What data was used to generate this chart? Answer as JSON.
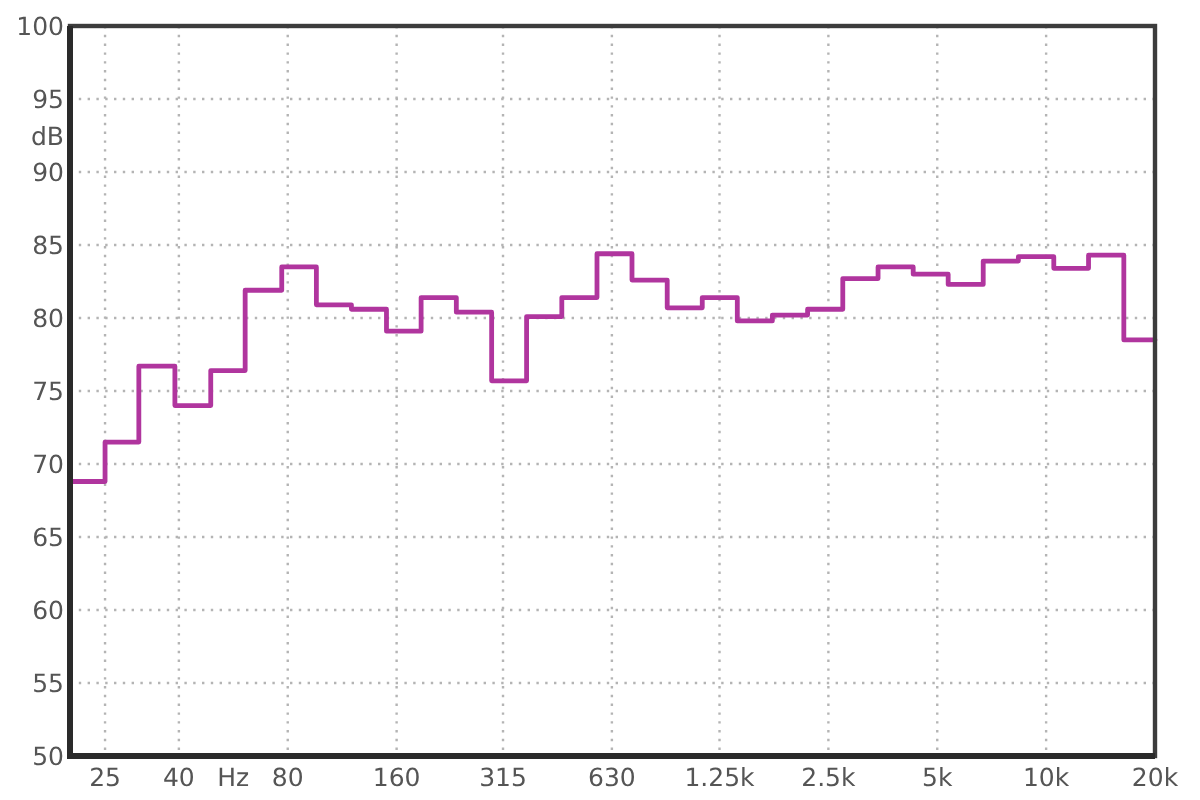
{
  "chart_data": {
    "type": "step",
    "xlabel": "Hz",
    "ylabel": "dB",
    "log": "x",
    "x": [
      20,
      25,
      31,
      39,
      49,
      61,
      77,
      96,
      120,
      150,
      187,
      234,
      293,
      366,
      458,
      573,
      716,
      896,
      1120,
      1400,
      1750,
      2190,
      2740,
      3430,
      4290,
      5360,
      6700,
      8380,
      10500,
      13100,
      16400,
      20000
    ],
    "values": [
      68.8,
      71.5,
      76.7,
      74.0,
      76.4,
      81.9,
      83.5,
      80.9,
      80.6,
      79.1,
      81.4,
      80.4,
      75.7,
      80.1,
      81.4,
      84.4,
      82.6,
      80.7,
      81.4,
      79.8,
      80.2,
      80.6,
      82.7,
      83.5,
      83.0,
      82.3,
      83.9,
      84.2,
      83.4,
      84.3,
      78.5,
      78.5
    ],
    "color": "#b0359e",
    "xlim": [
      20,
      20000
    ],
    "xticks": [
      25,
      40,
      80,
      160,
      315,
      630,
      {
        "value": 1250,
        "label": "1.25k"
      },
      {
        "value": 2500,
        "label": "2.5k"
      },
      {
        "value": 5000,
        "label": "5k"
      },
      {
        "value": 10000,
        "label": "10k"
      },
      {
        "value": 20000,
        "label": "20k"
      }
    ],
    "ylim": [
      50,
      100
    ],
    "yticks": [
      50,
      55,
      60,
      65,
      70,
      75,
      80,
      85,
      90,
      95,
      100
    ],
    "grid": true
  }
}
